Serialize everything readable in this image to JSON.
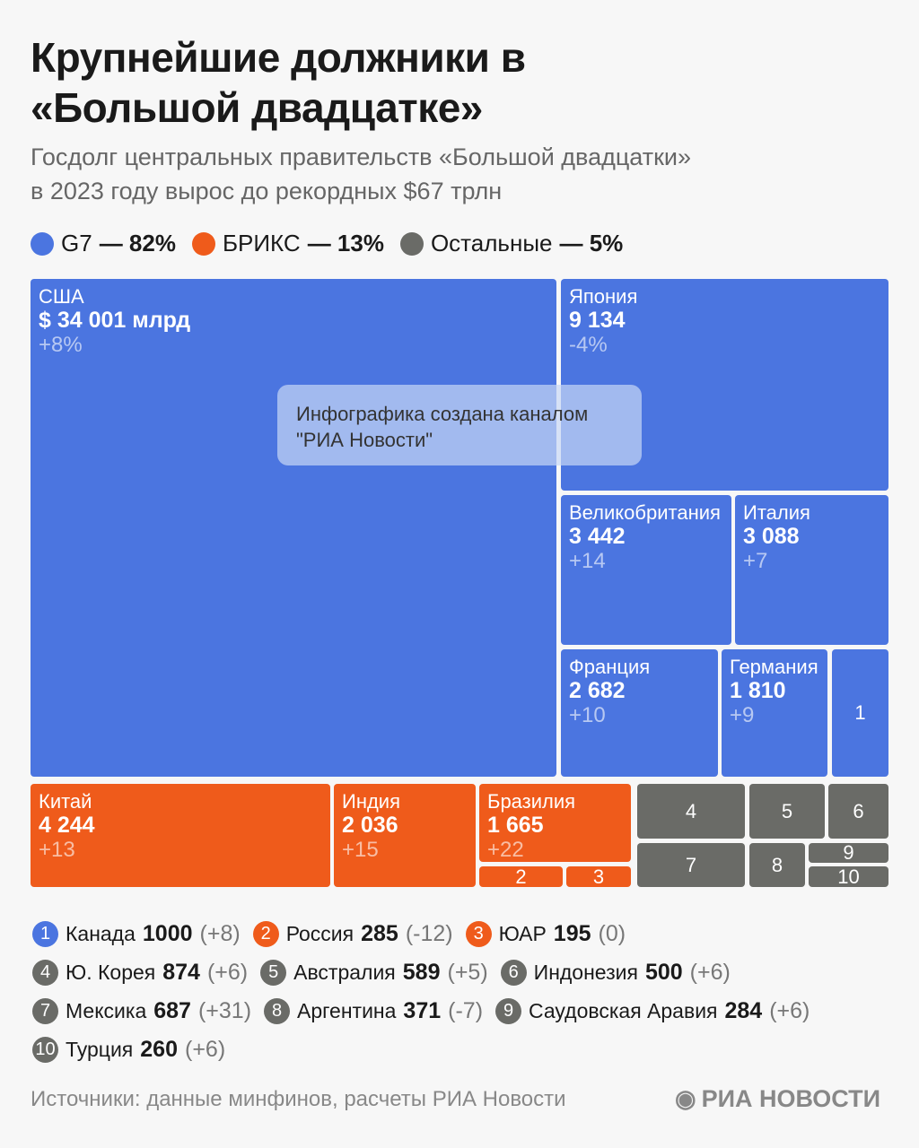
{
  "title": "Крупнейшие должники в «Большой двадцатке»",
  "subtitle_1": "Госдолг центральных правительств «Большой двадцатки»",
  "subtitle_2": "в 2023 году вырос до рекордных $67 трлн",
  "legend": [
    {
      "label": "G7",
      "share": "— 82%",
      "color": "#4b75e0"
    },
    {
      "label": "БРИКС",
      "share": "— 13%",
      "color": "#ef5b1b"
    },
    {
      "label": "Остальные",
      "share": "— 5%",
      "color": "#6a6b67"
    }
  ],
  "watermark": "Инфографика создана каналом \"РИА Новости\"",
  "chart_data": {
    "type": "treemap",
    "unit": "млрд $",
    "tiles": [
      {
        "name": "США",
        "value": 34001,
        "value_label": "$ 34 001 млрд",
        "change": "+8%",
        "group": "G7"
      },
      {
        "name": "Япония",
        "value": 9134,
        "value_label": "9 134",
        "change": "-4%",
        "group": "G7"
      },
      {
        "name": "Великобритания",
        "value": 3442,
        "value_label": "3 442",
        "change": "+14",
        "group": "G7"
      },
      {
        "name": "Италия",
        "value": 3088,
        "value_label": "3 088",
        "change": "+7",
        "group": "G7"
      },
      {
        "name": "Франция",
        "value": 2682,
        "value_label": "2 682",
        "change": "+10",
        "group": "G7"
      },
      {
        "name": "Германия",
        "value": 1810,
        "value_label": "1 810",
        "change": "+9",
        "group": "G7"
      },
      {
        "name": "Китай",
        "value": 4244,
        "value_label": "4 244",
        "change": "+13",
        "group": "БРИКС"
      },
      {
        "name": "Индия",
        "value": 2036,
        "value_label": "2 036",
        "change": "+15",
        "group": "БРИКС"
      },
      {
        "name": "Бразилия",
        "value": 1665,
        "value_label": "1 665",
        "change": "+22",
        "group": "БРИКС"
      }
    ],
    "numbered": [
      {
        "num": "1",
        "name": "Канада",
        "value": "1000",
        "change": "(+8)",
        "group": "G7"
      },
      {
        "num": "2",
        "name": "Россия",
        "value": "285",
        "change": "(-12)",
        "group": "БРИКС"
      },
      {
        "num": "3",
        "name": "ЮАР",
        "value": "195",
        "change": "(0)",
        "group": "БРИКС"
      },
      {
        "num": "4",
        "name": "Ю. Корея",
        "value": "874",
        "change": "(+6)",
        "group": "Остальные"
      },
      {
        "num": "5",
        "name": "Австралия",
        "value": "589",
        "change": "(+5)",
        "group": "Остальные"
      },
      {
        "num": "6",
        "name": "Индонезия",
        "value": "500",
        "change": "(+6)",
        "group": "Остальные"
      },
      {
        "num": "7",
        "name": "Мексика",
        "value": "687",
        "change": "(+31)",
        "group": "Остальные"
      },
      {
        "num": "8",
        "name": "Аргентина",
        "value": "371",
        "change": "(-7)",
        "group": "Остальные"
      },
      {
        "num": "9",
        "name": "Саудовская Аравия",
        "value": "284",
        "change": "(+6)",
        "group": "Остальные"
      },
      {
        "num": "10",
        "name": "Турция",
        "value": "260",
        "change": "(+6)",
        "group": "Остальные"
      }
    ]
  },
  "source": "Источники: данные минфинов, расчеты РИА Новости",
  "logo": "РИА НОВОСТИ"
}
